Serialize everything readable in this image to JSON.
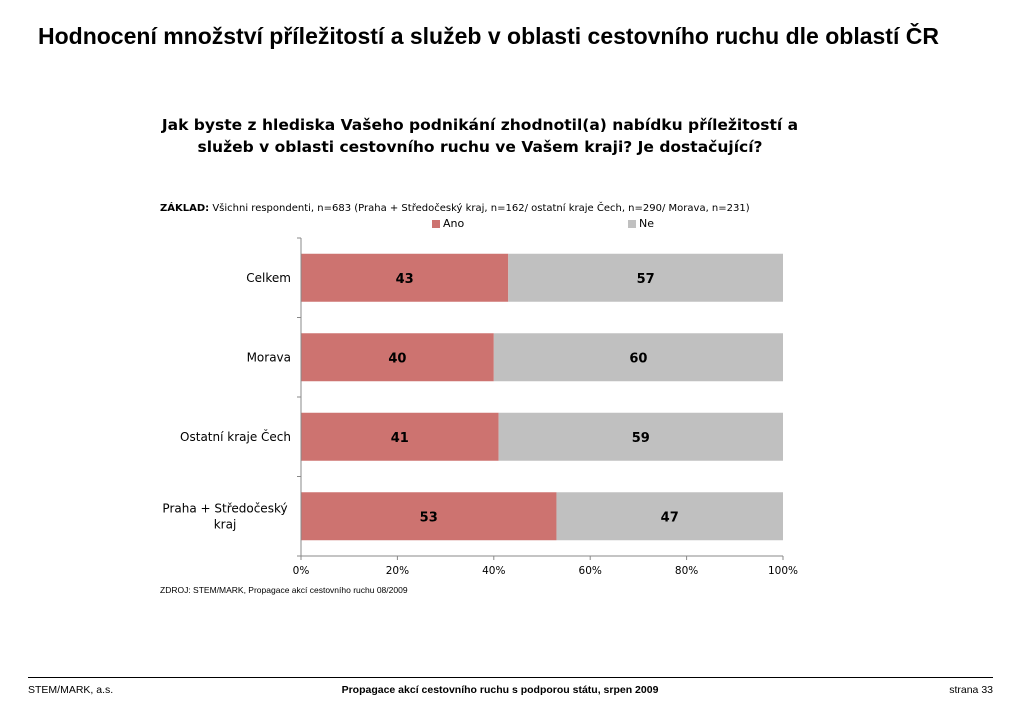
{
  "page": {
    "title": "Hodnocení množství příležitostí a služeb v oblasti cestovního ruchu dle oblastí ČR"
  },
  "chart_data": {
    "type": "bar",
    "orientation": "horizontal",
    "stacked": "percent",
    "title": "Jak byste z hlediska Vašeho podnikání zhodnotil(a) nabídku příležitostí a služeb v oblasti cestovního ruchu ve Vašem kraji? Je dostačující?",
    "base_label": "ZÁKLAD:",
    "base_text": "Všichni respondenti, n=683 (Praha + Středočeský kraj, n=162/ ostatní kraje Čech, n=290/ Morava, n=231)",
    "categories": [
      "Celkem",
      "Morava",
      "Ostatní kraje Čech",
      "Praha + Středočeský kraj"
    ],
    "series": [
      {
        "name": "Ano",
        "color": "#cd7370",
        "values": [
          43,
          40,
          41,
          53
        ]
      },
      {
        "name": "Ne",
        "color": "#c0c0c0",
        "values": [
          57,
          60,
          59,
          47
        ]
      }
    ],
    "xlim": [
      0,
      100
    ],
    "x_ticks": [
      "0%",
      "20%",
      "40%",
      "60%",
      "80%",
      "100%"
    ],
    "grid": false,
    "legend_position": "top"
  },
  "source": "ZDROJ: STEM/MARK, Propagace akcí cestovního ruchu 08/2009",
  "footer": {
    "left": "STEM/MARK, a.s.",
    "center": "Propagace akcí cestovního ruchu s podporou státu, srpen 2009",
    "right": "strana 33"
  }
}
